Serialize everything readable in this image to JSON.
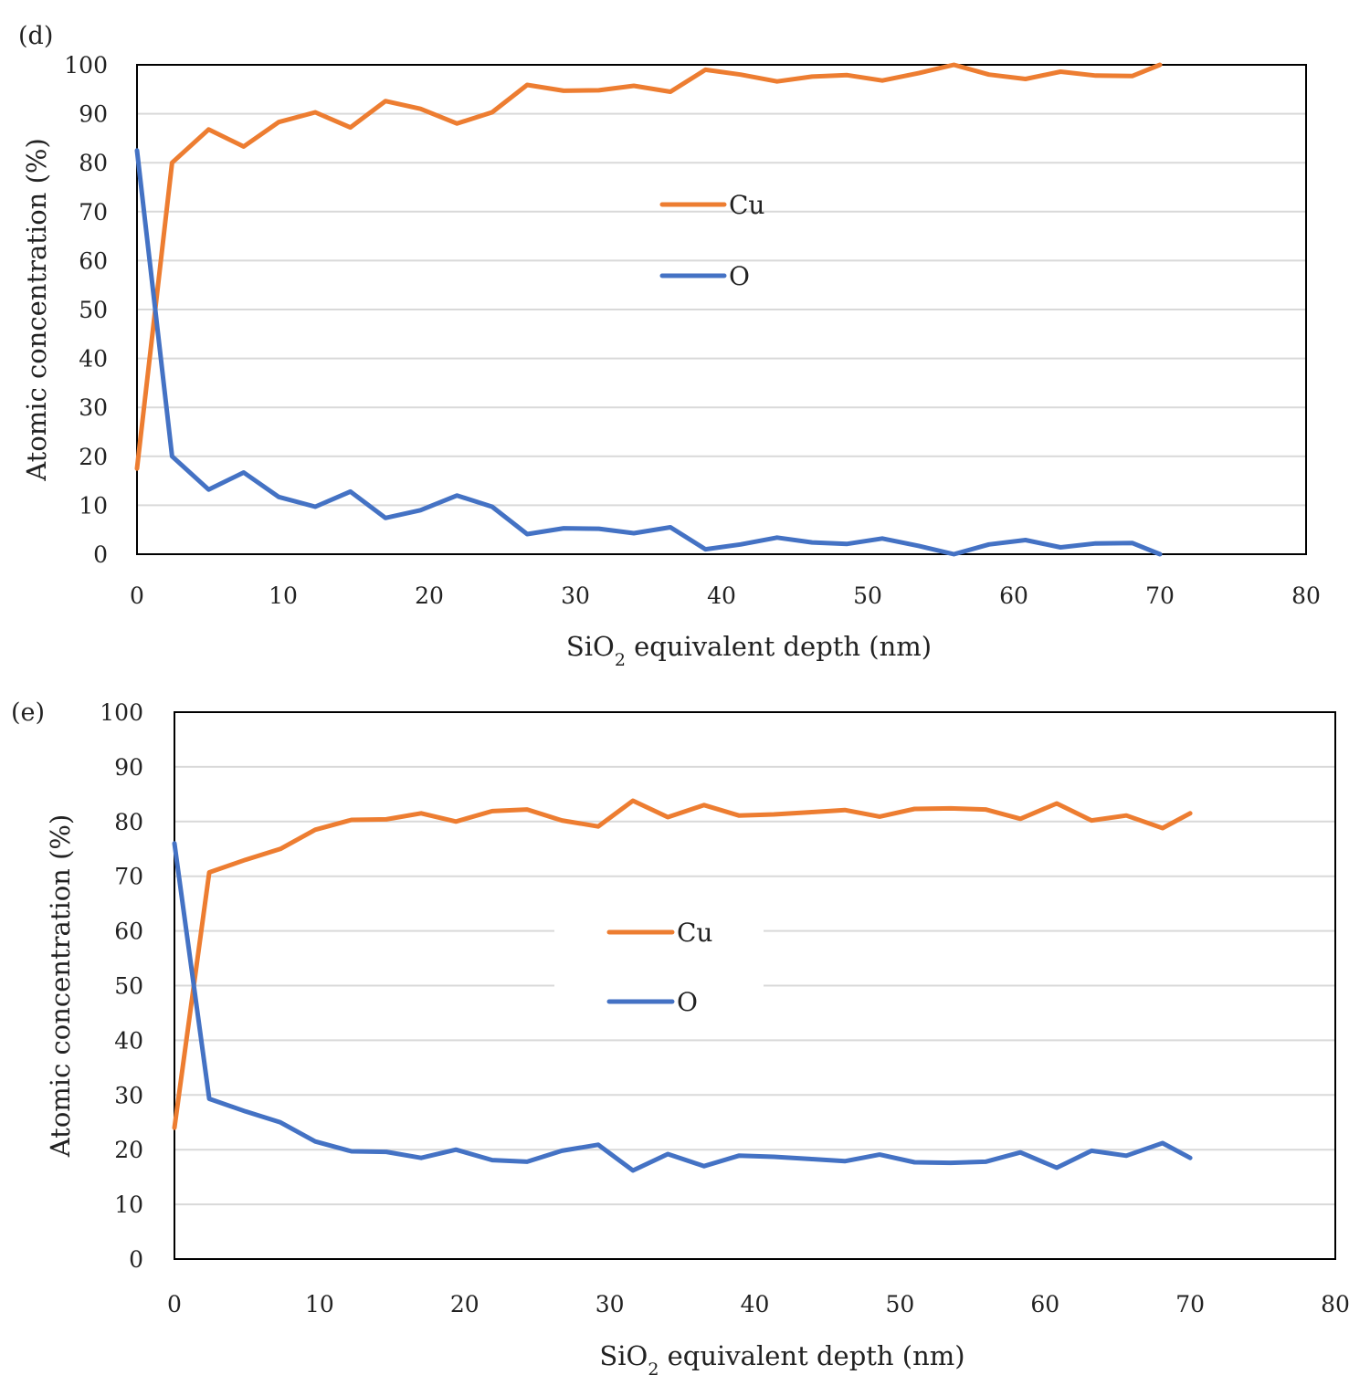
{
  "chart_data": [
    {
      "type": "line",
      "panel_label": "(d)",
      "xlabel": "SiO2 equivalent depth (nm)",
      "xlabel_main": "SiO",
      "xlabel_sub": "2",
      "xlabel_rest": " equivalent depth (nm)",
      "ylabel": "Atomic concentration (%)",
      "xlim": [
        0,
        80
      ],
      "ylim": [
        0,
        100
      ],
      "xticks": [
        0,
        10,
        20,
        30,
        40,
        50,
        60,
        70,
        80
      ],
      "yticks": [
        0,
        10,
        20,
        30,
        40,
        50,
        60,
        70,
        80,
        90,
        100
      ],
      "grid": "horizontal",
      "legend": "center",
      "x": [
        0,
        2.4,
        4.9,
        7.3,
        9.7,
        12.2,
        14.6,
        17.0,
        19.4,
        21.9,
        24.3,
        26.7,
        29.2,
        31.6,
        34.0,
        36.5,
        38.9,
        41.3,
        43.8,
        46.2,
        48.6,
        51.0,
        53.5,
        55.9,
        58.3,
        60.8,
        63.2,
        65.6,
        68.1,
        70.0
      ],
      "series": [
        {
          "name": "Cu",
          "color": "#ED7D31",
          "values": [
            17.5,
            80,
            86.8,
            83.3,
            88.3,
            90.3,
            87.2,
            92.6,
            91.0,
            88.0,
            90.3,
            95.9,
            94.7,
            94.8,
            95.7,
            94.5,
            99.0,
            98.0,
            96.6,
            97.6,
            97.9,
            96.8,
            98.3,
            100,
            98.0,
            97.1,
            98.6,
            97.8,
            97.7,
            100
          ]
        },
        {
          "name": "O",
          "color": "#4472C4",
          "values": [
            82.5,
            20,
            13.2,
            16.7,
            11.7,
            9.7,
            12.8,
            7.4,
            9.0,
            12.0,
            9.7,
            4.1,
            5.3,
            5.2,
            4.3,
            5.5,
            1.0,
            2.0,
            3.4,
            2.4,
            2.1,
            3.2,
            1.7,
            0,
            2.0,
            2.9,
            1.4,
            2.2,
            2.3,
            0
          ]
        }
      ]
    },
    {
      "type": "line",
      "panel_label": "(e)",
      "xlabel": "SiO2 equivalent depth (nm)",
      "xlabel_main": "SiO",
      "xlabel_sub": "2",
      "xlabel_rest": " equivalent depth (nm)",
      "ylabel": "Atomic concentration (%)",
      "xlim": [
        0,
        80
      ],
      "ylim": [
        0,
        100
      ],
      "xticks": [
        0,
        10,
        20,
        30,
        40,
        50,
        60,
        70,
        80
      ],
      "yticks": [
        0,
        10,
        20,
        30,
        40,
        50,
        60,
        70,
        80,
        90,
        100
      ],
      "grid": "horizontal",
      "legend": "center",
      "x": [
        0,
        2.4,
        4.9,
        7.3,
        9.7,
        12.2,
        14.6,
        17.0,
        19.4,
        21.9,
        24.3,
        26.7,
        29.2,
        31.6,
        34.0,
        36.5,
        38.9,
        41.3,
        43.8,
        46.2,
        48.6,
        51.0,
        53.5,
        55.9,
        58.3,
        60.8,
        63.2,
        65.6,
        68.1,
        70.0
      ],
      "series": [
        {
          "name": "Cu",
          "color": "#ED7D31",
          "values": [
            24,
            70.7,
            73.0,
            75.0,
            78.5,
            80.3,
            80.4,
            81.5,
            80.0,
            81.9,
            82.2,
            80.2,
            79.1,
            83.8,
            80.8,
            83.0,
            81.1,
            81.3,
            81.7,
            82.1,
            80.9,
            82.3,
            82.4,
            82.2,
            80.5,
            83.3,
            80.2,
            81.1,
            78.8,
            81.5
          ]
        },
        {
          "name": "O",
          "color": "#4472C4",
          "values": [
            76,
            29.3,
            27.0,
            25.0,
            21.5,
            19.7,
            19.6,
            18.5,
            20.0,
            18.1,
            17.8,
            19.8,
            20.9,
            16.2,
            19.2,
            17.0,
            18.9,
            18.7,
            18.3,
            17.9,
            19.1,
            17.7,
            17.6,
            17.8,
            19.5,
            16.7,
            19.8,
            18.9,
            21.2,
            18.5
          ]
        }
      ]
    }
  ]
}
